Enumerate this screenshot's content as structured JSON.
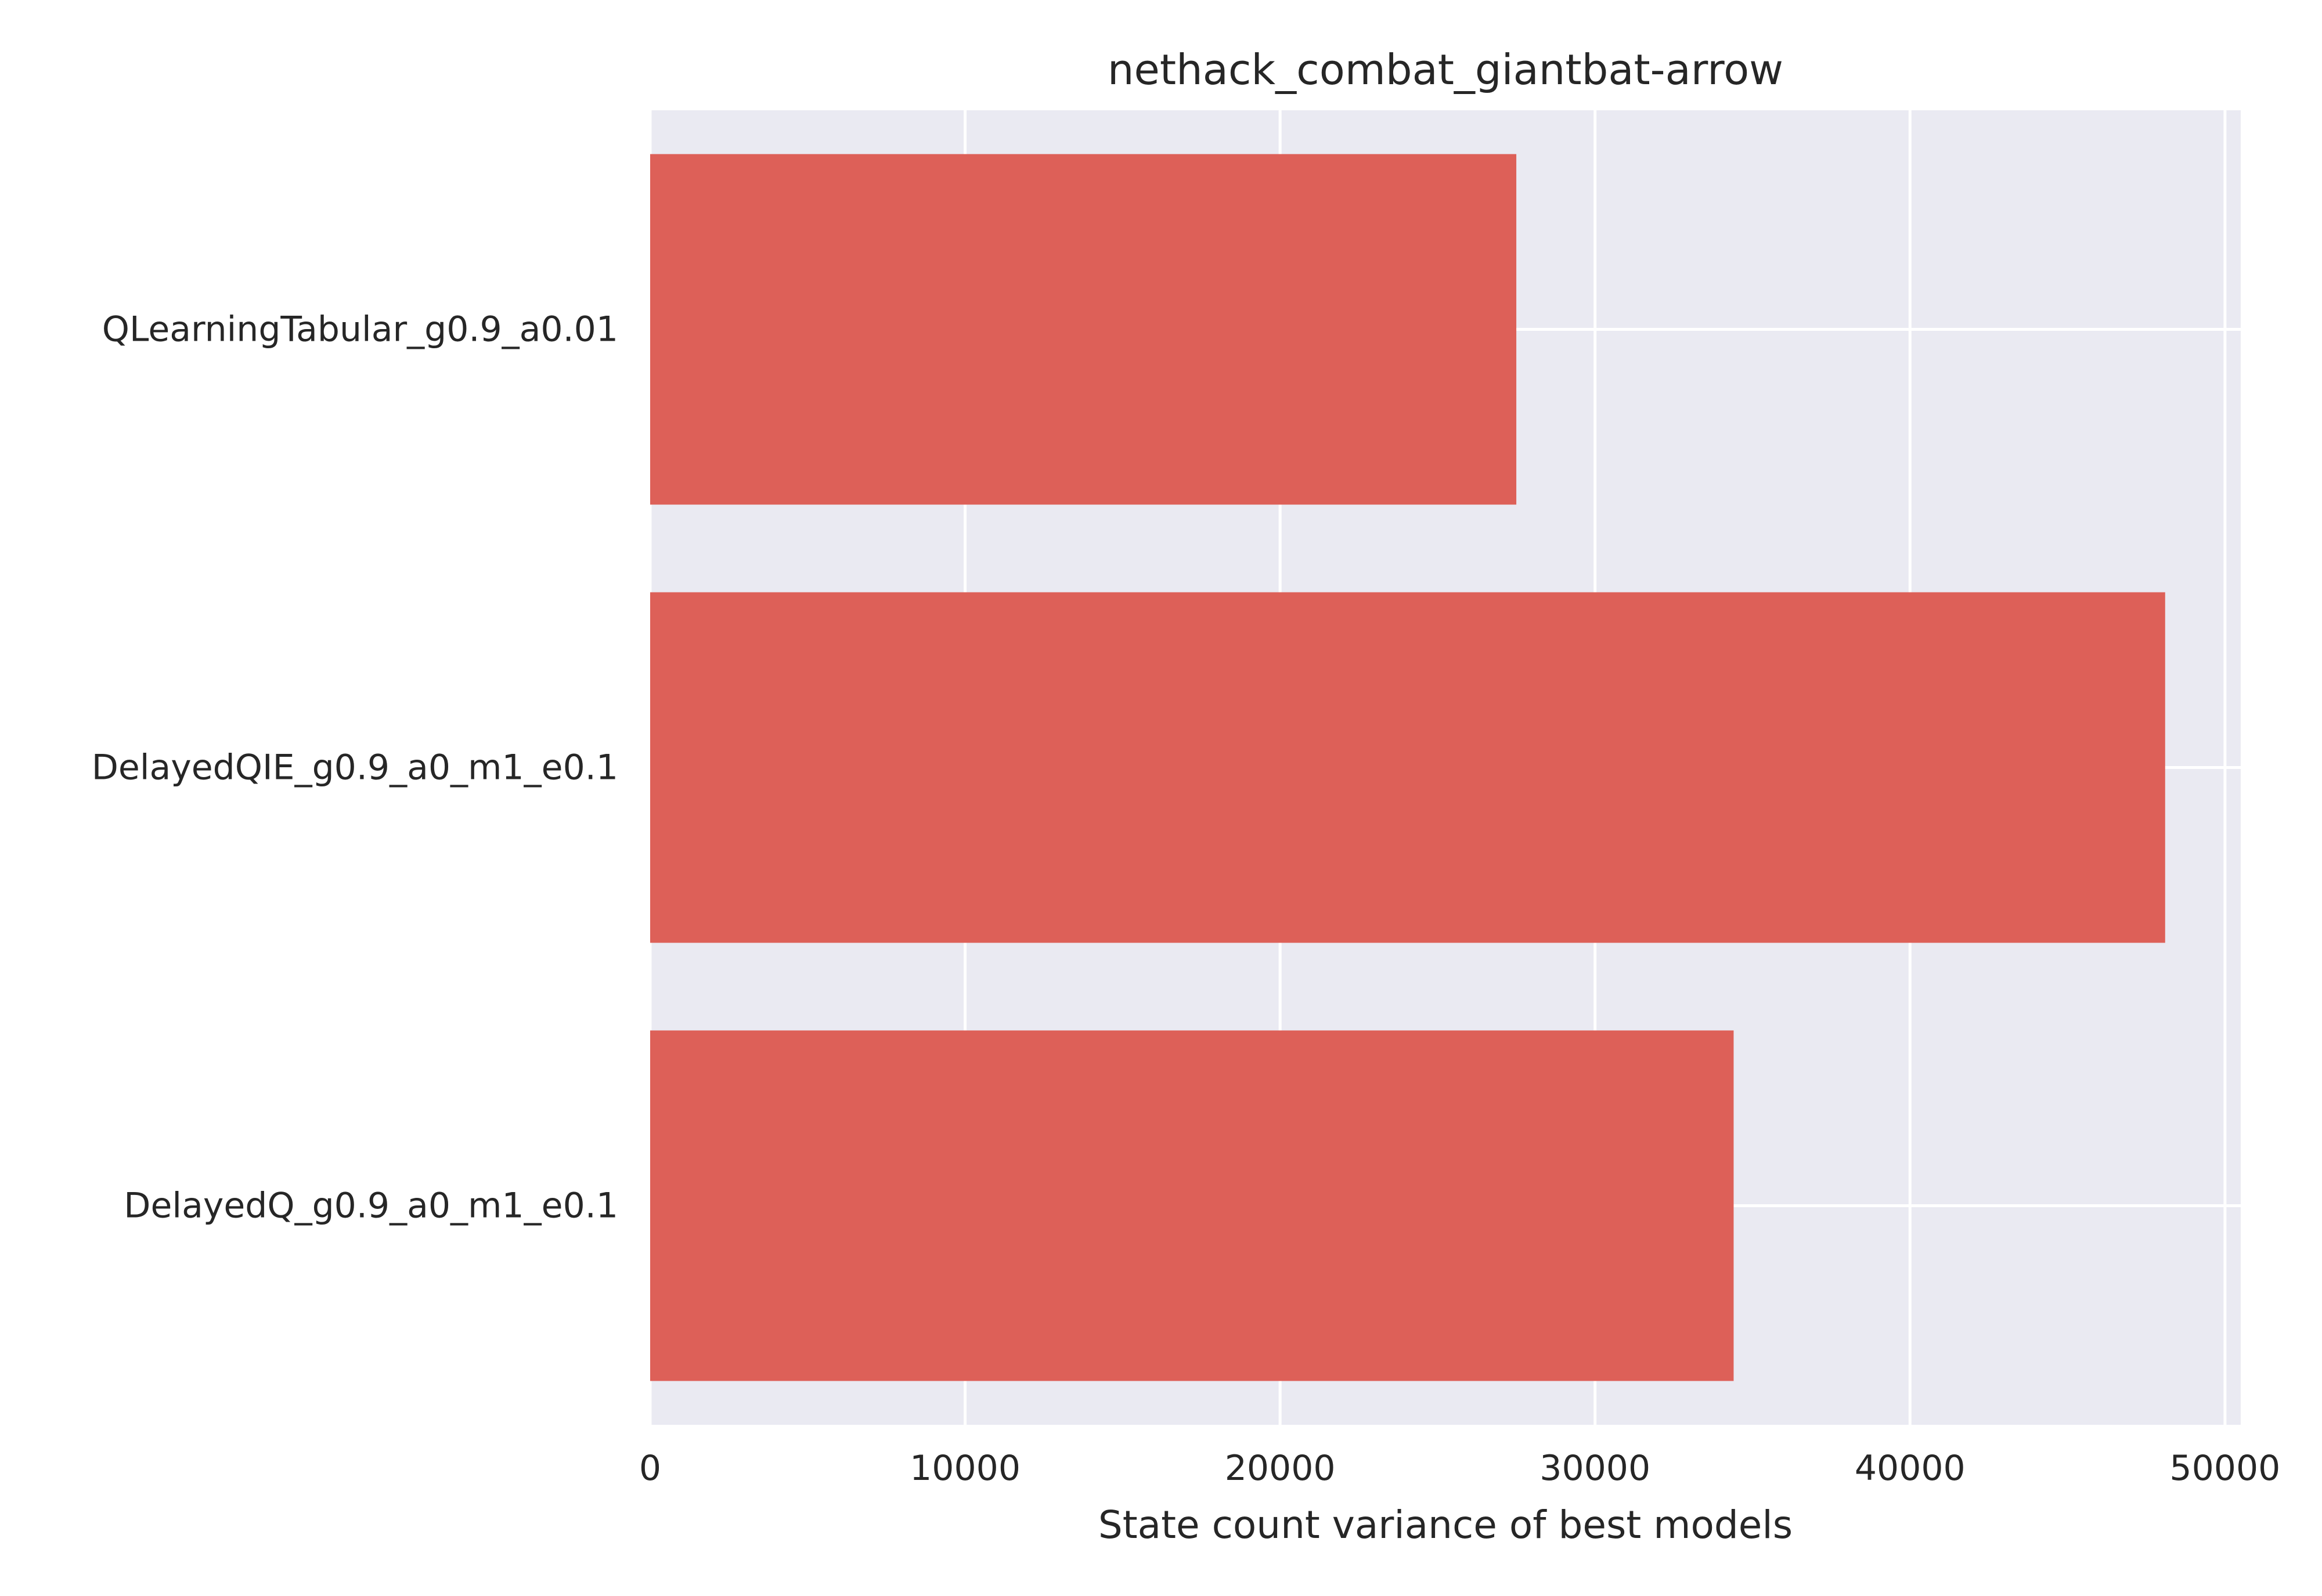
{
  "chart_data": {
    "type": "bar",
    "orientation": "horizontal",
    "title": "nethack_combat_giantbat-arrow",
    "xlabel": "State count variance of best models",
    "ylabel": "",
    "categories": [
      "QLearningTabular_g0.9_a0.01",
      "DelayedQIE_g0.9_a0_m1_e0.1",
      "DelayedQ_g0.9_a0_m1_e0.1"
    ],
    "values": [
      27500,
      48100,
      34400
    ],
    "xlim": [
      0,
      50500
    ],
    "xticks": [
      0,
      10000,
      20000,
      30000,
      40000,
      50000
    ],
    "xtick_labels": [
      "0",
      "10000",
      "20000",
      "30000",
      "40000",
      "50000"
    ],
    "grid": true,
    "colors": {
      "bar": "#dd6058",
      "plot_background": "#eaeaf2",
      "grid": "#ffffff",
      "text": "#262626"
    }
  }
}
